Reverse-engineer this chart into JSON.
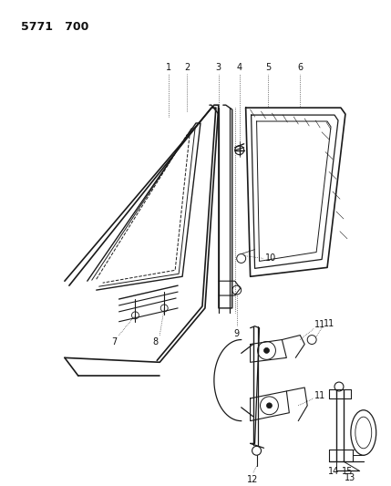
{
  "title": "5771   700",
  "bg": "#ffffff",
  "lc": "#1a1a1a",
  "tc": "#111111",
  "figsize": [
    4.29,
    5.33
  ],
  "dpi": 100
}
